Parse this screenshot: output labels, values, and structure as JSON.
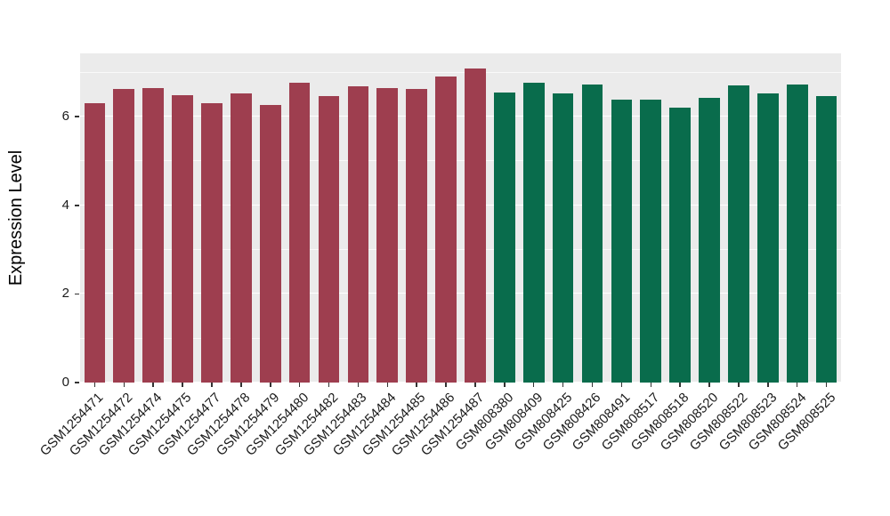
{
  "chart_data": {
    "type": "bar",
    "title": "",
    "xlabel": "",
    "ylabel": "Expression Level",
    "ylim": [
      0,
      7.43
    ],
    "yticks": [
      0,
      2,
      4,
      6
    ],
    "minor_gridlines": [
      1,
      3,
      5,
      7
    ],
    "grid": true,
    "legend_position": "none",
    "panel_background": "#ebebeb",
    "gridline_color": "#ffffff",
    "axis_text_color": "#1a1a1a",
    "tick_mark_color": "#333333",
    "group_colors": {
      "maroon": "#9e3e4f",
      "green": "#096c4c"
    },
    "bars": [
      {
        "label": "GSM1254471",
        "value": 6.3,
        "group": "maroon"
      },
      {
        "label": "GSM1254472",
        "value": 6.63,
        "group": "maroon"
      },
      {
        "label": "GSM1254474",
        "value": 6.64,
        "group": "maroon"
      },
      {
        "label": "GSM1254475",
        "value": 6.49,
        "group": "maroon"
      },
      {
        "label": "GSM1254477",
        "value": 6.31,
        "group": "maroon"
      },
      {
        "label": "GSM1254478",
        "value": 6.53,
        "group": "maroon"
      },
      {
        "label": "GSM1254479",
        "value": 6.26,
        "group": "maroon"
      },
      {
        "label": "GSM1254480",
        "value": 6.76,
        "group": "maroon"
      },
      {
        "label": "GSM1254482",
        "value": 6.46,
        "group": "maroon"
      },
      {
        "label": "GSM1254483",
        "value": 6.68,
        "group": "maroon"
      },
      {
        "label": "GSM1254484",
        "value": 6.65,
        "group": "maroon"
      },
      {
        "label": "GSM1254485",
        "value": 6.63,
        "group": "maroon"
      },
      {
        "label": "GSM1254486",
        "value": 6.9,
        "group": "maroon"
      },
      {
        "label": "GSM1254487",
        "value": 7.08,
        "group": "maroon"
      },
      {
        "label": "GSM808380",
        "value": 6.55,
        "group": "green"
      },
      {
        "label": "GSM808409",
        "value": 6.77,
        "group": "green"
      },
      {
        "label": "GSM808425",
        "value": 6.52,
        "group": "green"
      },
      {
        "label": "GSM808426",
        "value": 6.72,
        "group": "green"
      },
      {
        "label": "GSM808491",
        "value": 6.38,
        "group": "green"
      },
      {
        "label": "GSM808517",
        "value": 6.38,
        "group": "green"
      },
      {
        "label": "GSM808518",
        "value": 6.2,
        "group": "green"
      },
      {
        "label": "GSM808520",
        "value": 6.43,
        "group": "green"
      },
      {
        "label": "GSM808522",
        "value": 6.7,
        "group": "green"
      },
      {
        "label": "GSM808523",
        "value": 6.53,
        "group": "green"
      },
      {
        "label": "GSM808524",
        "value": 6.72,
        "group": "green"
      },
      {
        "label": "GSM808525",
        "value": 6.47,
        "group": "green"
      }
    ]
  }
}
